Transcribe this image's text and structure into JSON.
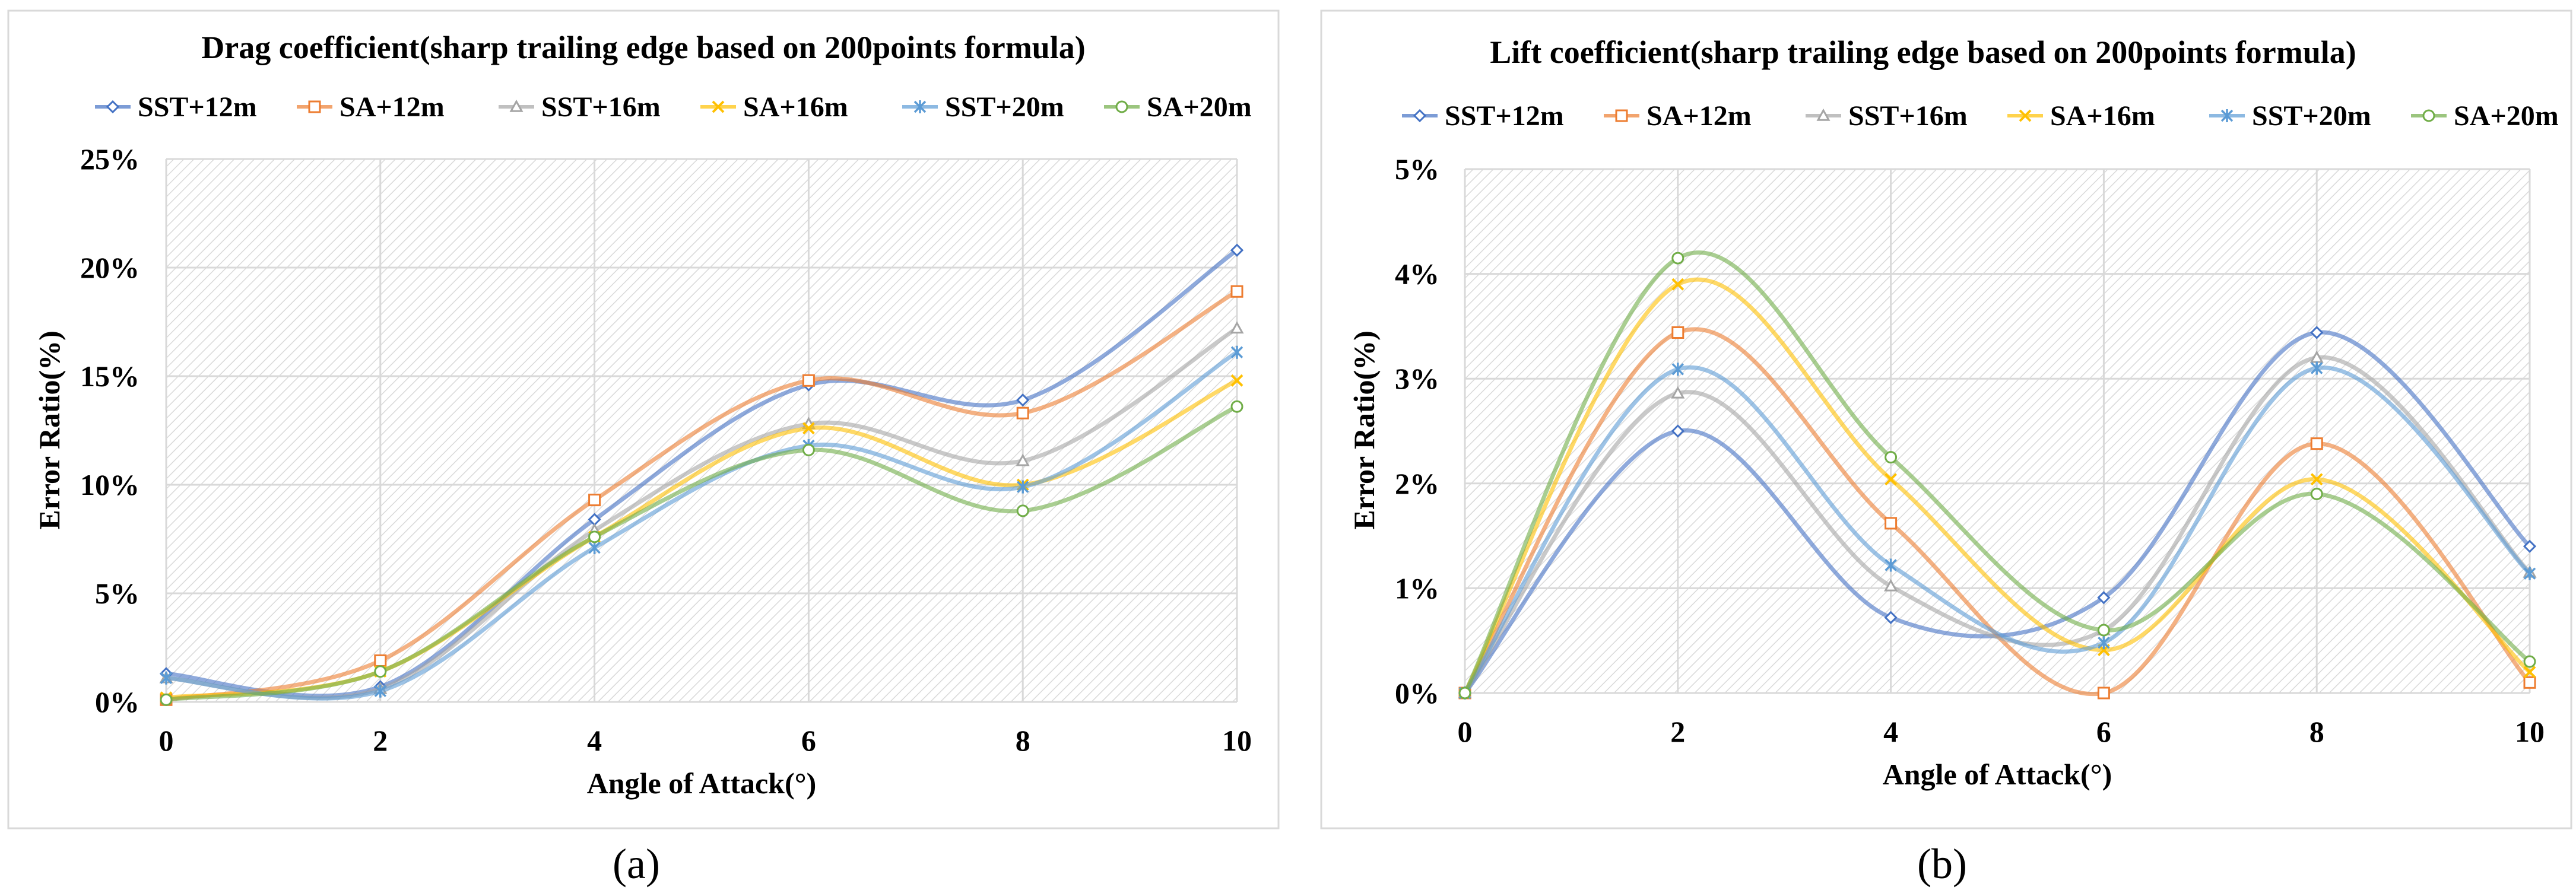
{
  "figure": {
    "panel_labels": [
      "(a)",
      "(b)"
    ]
  },
  "chart_data": [
    {
      "type": "line",
      "title": "Drag coefficient(sharp trailing edge based on 200points formula)",
      "xlabel": "Angle of Attack(°)",
      "ylabel": "Error Ratio(%)",
      "x": [
        0,
        2,
        4,
        6,
        8,
        10
      ],
      "xticks": [
        "0",
        "2",
        "4",
        "6",
        "8",
        "10"
      ],
      "ylim": [
        0,
        25
      ],
      "yticks": [
        0,
        5,
        10,
        15,
        20,
        25
      ],
      "ytick_labels": [
        "0%",
        "5%",
        "10%",
        "15%",
        "20%",
        "25%"
      ],
      "grid": true,
      "legend_position": "top",
      "series": [
        {
          "name": "SST+12m",
          "color": "#4472C4",
          "marker": "diamond",
          "values": [
            1.3,
            0.7,
            8.4,
            14.6,
            13.9,
            20.8
          ]
        },
        {
          "name": "SA+12m",
          "color": "#ED7D31",
          "marker": "square",
          "values": [
            0.1,
            1.9,
            9.3,
            14.8,
            13.3,
            18.9
          ]
        },
        {
          "name": "SST+16m",
          "color": "#A5A5A5",
          "marker": "triangle",
          "values": [
            1.1,
            0.6,
            7.9,
            12.8,
            11.1,
            17.2
          ]
        },
        {
          "name": "SA+16m",
          "color": "#FFC000",
          "marker": "x",
          "values": [
            0.2,
            1.4,
            7.6,
            12.6,
            10.0,
            14.8
          ]
        },
        {
          "name": "SST+20m",
          "color": "#5B9BD5",
          "marker": "star",
          "values": [
            1.1,
            0.5,
            7.1,
            11.8,
            9.9,
            16.1
          ]
        },
        {
          "name": "SA+20m",
          "color": "#70AD47",
          "marker": "circle",
          "values": [
            0.1,
            1.4,
            7.6,
            11.6,
            8.8,
            13.6
          ]
        }
      ]
    },
    {
      "type": "line",
      "title": "Lift coefficient(sharp trailing edge based on 200points formula)",
      "xlabel": "Angle of Attack(°)",
      "ylabel": "Error Ratio(%)",
      "x": [
        0,
        2,
        4,
        6,
        8,
        10
      ],
      "xticks": [
        "0",
        "2",
        "4",
        "6",
        "8",
        "10"
      ],
      "ylim": [
        0,
        5
      ],
      "yticks": [
        0,
        1,
        2,
        3,
        4,
        5
      ],
      "ytick_labels": [
        "0%",
        "1%",
        "2%",
        "3%",
        "4%",
        "5%"
      ],
      "grid": true,
      "legend_position": "top",
      "series": [
        {
          "name": "SST+12m",
          "color": "#4472C4",
          "marker": "diamond",
          "values": [
            0.0,
            2.5,
            0.72,
            0.91,
            3.44,
            1.4
          ]
        },
        {
          "name": "SA+12m",
          "color": "#ED7D31",
          "marker": "square",
          "values": [
            0.0,
            3.44,
            1.62,
            0.0,
            2.38,
            0.1
          ]
        },
        {
          "name": "SST+16m",
          "color": "#A5A5A5",
          "marker": "triangle",
          "values": [
            0.0,
            2.86,
            1.02,
            0.6,
            3.2,
            1.15
          ]
        },
        {
          "name": "SA+16m",
          "color": "#FFC000",
          "marker": "x",
          "values": [
            0.0,
            3.9,
            2.04,
            0.41,
            2.04,
            0.2
          ]
        },
        {
          "name": "SST+20m",
          "color": "#5B9BD5",
          "marker": "star",
          "values": [
            0.0,
            3.09,
            1.22,
            0.48,
            3.1,
            1.14
          ]
        },
        {
          "name": "SA+20m",
          "color": "#70AD47",
          "marker": "circle",
          "values": [
            0.0,
            4.15,
            2.25,
            0.6,
            1.9,
            0.3
          ]
        }
      ]
    }
  ]
}
